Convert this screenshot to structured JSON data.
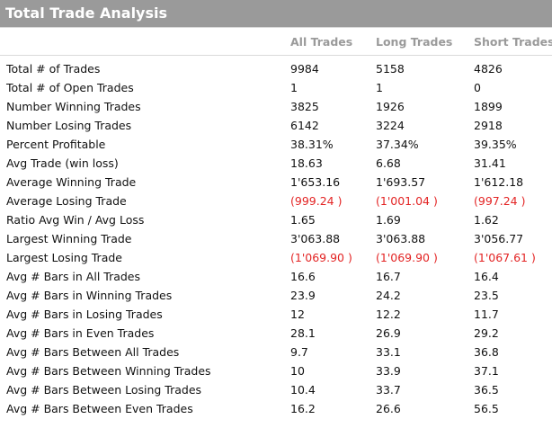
{
  "panel": {
    "title": "Total Trade Analysis",
    "columns": [
      "All Trades",
      "Long Trades",
      "Short Trades"
    ]
  },
  "rows": [
    {
      "label": "Total # of Trades",
      "all": "9984",
      "long": "5158",
      "short": "4826"
    },
    {
      "label": "Total # of Open Trades",
      "all": "1",
      "long": "1",
      "short": "0"
    },
    {
      "label": "Number Winning Trades",
      "all": "3825",
      "long": "1926",
      "short": "1899"
    },
    {
      "label": "Number Losing Trades",
      "all": "6142",
      "long": "3224",
      "short": "2918"
    },
    {
      "label": "Percent Profitable",
      "all": "38.31%",
      "long": "37.34%",
      "short": "39.35%"
    },
    {
      "label": "Avg Trade (win  loss)",
      "all": "18.63",
      "long": "6.68",
      "short": "31.41"
    },
    {
      "label": "Average Winning Trade",
      "all": "1'653.16",
      "long": "1'693.57",
      "short": "1'612.18"
    },
    {
      "label": "Average Losing Trade",
      "all": "(999.24 )",
      "long": "(1'001.04 )",
      "short": "(997.24 )",
      "negative": true
    },
    {
      "label": "Ratio Avg Win / Avg Loss",
      "all": "1.65",
      "long": "1.69",
      "short": "1.62"
    },
    {
      "label": "Largest Winning Trade",
      "all": "3'063.88",
      "long": "3'063.88",
      "short": "3'056.77"
    },
    {
      "label": "Largest Losing Trade",
      "all": "(1'069.90 )",
      "long": "(1'069.90 )",
      "short": "(1'067.61 )",
      "negative": true
    },
    {
      "label": "Avg # Bars in All Trades",
      "all": "16.6",
      "long": "16.7",
      "short": "16.4"
    },
    {
      "label": "Avg # Bars in Winning Trades",
      "all": "23.9",
      "long": "24.2",
      "short": "23.5"
    },
    {
      "label": "Avg # Bars in Losing Trades",
      "all": "12",
      "long": "12.2",
      "short": "11.7"
    },
    {
      "label": "Avg # Bars in Even Trades",
      "all": "28.1",
      "long": "26.9",
      "short": "29.2"
    },
    {
      "label": "Avg # Bars Between All Trades",
      "all": "9.7",
      "long": "33.1",
      "short": "36.8"
    },
    {
      "label": "Avg # Bars Between Winning Trades",
      "all": "10",
      "long": "33.9",
      "short": "37.1"
    },
    {
      "label": "Avg # Bars Between Losing Trades",
      "all": "10.4",
      "long": "33.7",
      "short": "36.5"
    },
    {
      "label": "Avg # Bars Between Even Trades",
      "all": "16.2",
      "long": "26.6",
      "short": "56.5"
    }
  ],
  "colors": {
    "header_bg": "#9a9a9a",
    "negative": "#e32424",
    "column_header": "#9a9a9a"
  }
}
